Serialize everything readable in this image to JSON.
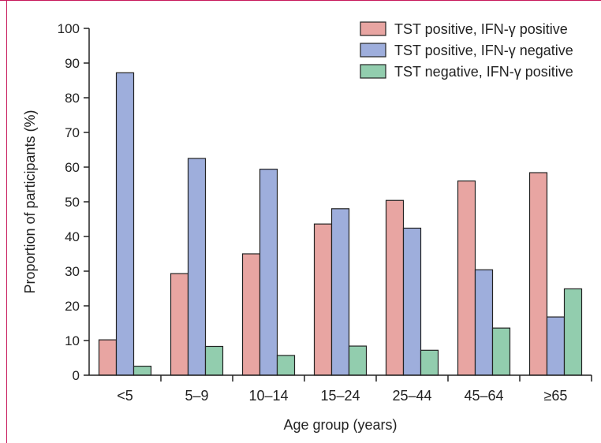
{
  "chart_data": {
    "type": "bar",
    "title": "",
    "xlabel": "Age group (years)",
    "ylabel": "Proportion of participants (%)",
    "ylim": [
      0,
      100
    ],
    "yticks": [
      "0",
      "10",
      "20",
      "30",
      "40",
      "50",
      "60",
      "70",
      "80",
      "90",
      "100"
    ],
    "categories": [
      "<5",
      "5–9",
      "10–14",
      "15–24",
      "25–44",
      "45–64",
      "≥65"
    ],
    "legend_position": "top-right",
    "grid": false,
    "series": [
      {
        "name": "TST positive, IFN-γ positive",
        "color": "#e8a5a2",
        "values": [
          10.2,
          29.3,
          35.0,
          43.6,
          50.4,
          56.0,
          58.4
        ]
      },
      {
        "name": "TST positive, IFN-γ negative",
        "color": "#9eaedc",
        "values": [
          87.2,
          62.5,
          59.4,
          48.0,
          42.4,
          30.4,
          16.8
        ]
      },
      {
        "name": "TST negative, IFN-γ positive",
        "color": "#92cdae",
        "values": [
          2.6,
          8.3,
          5.7,
          8.4,
          7.2,
          13.6,
          24.9
        ]
      }
    ]
  }
}
